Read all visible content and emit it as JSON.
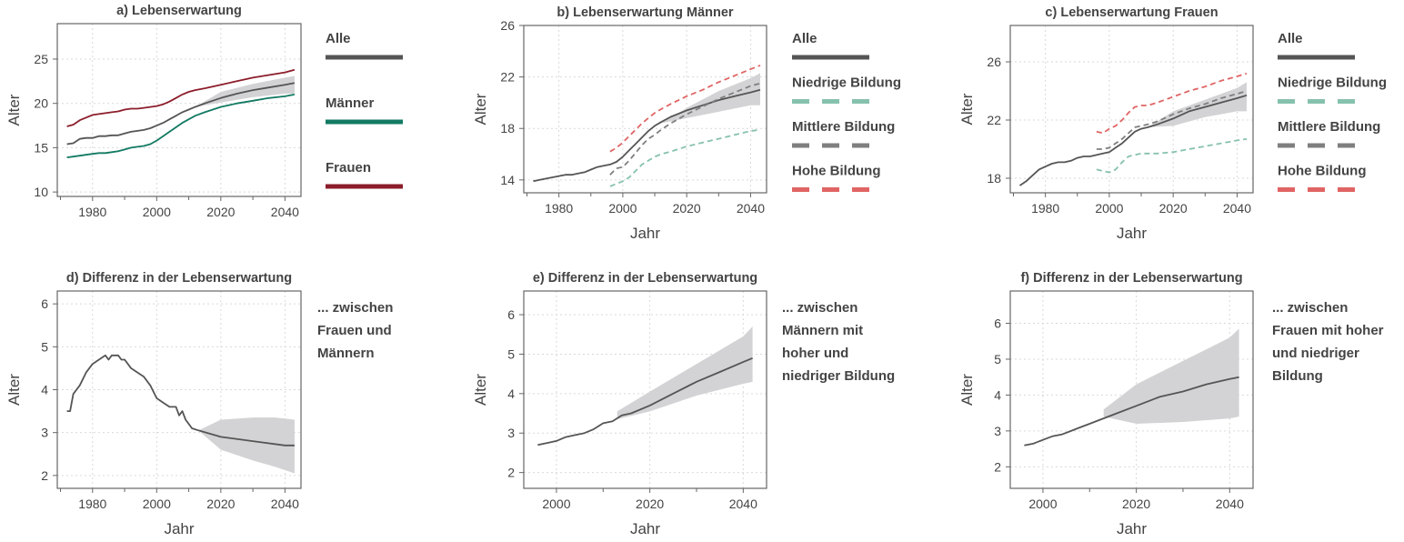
{
  "colors": {
    "alle": "#555555",
    "maenner": "#127a63",
    "frauen": "#8c1d2a",
    "niedrig": "#86c1ad",
    "mittel": "#7f7f7f",
    "hoch": "#e06464",
    "band": "#d3d3d5",
    "grid": "#d9d9d9",
    "frame": "#666666"
  },
  "legends": [
    {
      "items": [
        {
          "label": "Alle",
          "color_key": "alle",
          "dash": false
        },
        {
          "label": "Männer",
          "color_key": "maenner",
          "dash": false
        },
        {
          "label": "Frauen",
          "color_key": "frauen",
          "dash": false
        }
      ]
    },
    {
      "items": [
        {
          "label": "Alle",
          "color_key": "alle",
          "dash": false
        },
        {
          "label": "Niedrige Bildung",
          "color_key": "niedrig",
          "dash": true
        },
        {
          "label": "Mittlere Bildung",
          "color_key": "mittel",
          "dash": true
        },
        {
          "label": "Hohe Bildung",
          "color_key": "hoch",
          "dash": true
        }
      ]
    },
    {
      "items": [
        {
          "label": "Alle",
          "color_key": "alle",
          "dash": false
        },
        {
          "label": "Niedrige Bildung",
          "color_key": "niedrig",
          "dash": true
        },
        {
          "label": "Mittlere Bildung",
          "color_key": "mittel",
          "dash": true
        },
        {
          "label": "Hohe Bildung",
          "color_key": "hoch",
          "dash": true
        }
      ]
    }
  ],
  "notes": [
    {
      "lines": [
        "... zwischen",
        "Frauen und",
        "Männern"
      ]
    },
    {
      "lines": [
        "... zwischen",
        "Männern mit",
        "hoher und",
        "niedriger Bildung"
      ]
    },
    {
      "lines": [
        "... zwischen",
        "Frauen mit hoher",
        "und niedriger",
        "Bildung"
      ]
    }
  ],
  "chart_data": [
    {
      "type": "line",
      "title": "a) Lebenserwartung",
      "xlabel": "",
      "ylabel": "Alter",
      "xlim": [
        1969,
        2045
      ],
      "ylim": [
        9.5,
        29
      ],
      "xticks": [
        1980,
        2000,
        2020,
        2040
      ],
      "yticks": [
        10,
        15,
        20,
        25
      ],
      "grid": true,
      "series": [
        {
          "name": "Alle",
          "color_key": "alle",
          "dash": false,
          "x": [
            1972,
            1974,
            1976,
            1978,
            1980,
            1982,
            1984,
            1986,
            1988,
            1990,
            1992,
            1994,
            1996,
            1998,
            2000,
            2002,
            2004,
            2006,
            2008,
            2010,
            2012,
            2015,
            2020,
            2025,
            2030,
            2035,
            2040,
            2043
          ],
          "y": [
            15.4,
            15.5,
            16.0,
            16.1,
            16.1,
            16.3,
            16.3,
            16.4,
            16.4,
            16.6,
            16.8,
            16.9,
            17.0,
            17.2,
            17.5,
            17.8,
            18.2,
            18.6,
            19.0,
            19.3,
            19.6,
            20.0,
            20.6,
            21.1,
            21.5,
            21.8,
            22.1,
            22.3
          ]
        },
        {
          "name": "Männer",
          "color_key": "maenner",
          "dash": false,
          "x": [
            1972,
            1974,
            1976,
            1978,
            1980,
            1982,
            1984,
            1986,
            1988,
            1990,
            1992,
            1994,
            1996,
            1998,
            2000,
            2002,
            2004,
            2006,
            2008,
            2010,
            2012,
            2015,
            2020,
            2025,
            2030,
            2035,
            2040,
            2043
          ],
          "y": [
            13.9,
            14.0,
            14.1,
            14.2,
            14.3,
            14.4,
            14.4,
            14.5,
            14.6,
            14.8,
            15.0,
            15.1,
            15.2,
            15.4,
            15.8,
            16.3,
            16.8,
            17.3,
            17.8,
            18.2,
            18.6,
            19.0,
            19.6,
            20.0,
            20.3,
            20.6,
            20.8,
            21.0
          ]
        },
        {
          "name": "Frauen",
          "color_key": "frauen",
          "dash": false,
          "x": [
            1972,
            1974,
            1976,
            1978,
            1980,
            1982,
            1984,
            1986,
            1988,
            1990,
            1992,
            1994,
            1996,
            1998,
            2000,
            2002,
            2004,
            2006,
            2008,
            2010,
            2012,
            2015,
            2020,
            2025,
            2030,
            2035,
            2040,
            2043
          ],
          "y": [
            17.4,
            17.6,
            18.1,
            18.4,
            18.7,
            18.8,
            18.9,
            19.0,
            19.1,
            19.3,
            19.4,
            19.4,
            19.5,
            19.6,
            19.7,
            19.9,
            20.2,
            20.6,
            21.0,
            21.3,
            21.5,
            21.7,
            22.1,
            22.5,
            22.9,
            23.2,
            23.5,
            23.8
          ]
        }
      ],
      "band": {
        "x": [
          2012,
          2020,
          2030,
          2040,
          2043
        ],
        "lower": [
          19.6,
          20.1,
          20.7,
          21.1,
          21.1
        ],
        "upper": [
          19.6,
          21.3,
          22.2,
          22.9,
          23.1
        ]
      }
    },
    {
      "type": "line",
      "title": "b) Lebenserwartung Männer",
      "xlabel": "Jahr",
      "ylabel": "Alter",
      "xlim": [
        1969,
        2045
      ],
      "ylim": [
        13,
        26
      ],
      "xticks": [
        1980,
        2000,
        2020,
        2040
      ],
      "yticks": [
        14,
        18,
        22,
        26
      ],
      "grid": true,
      "series": [
        {
          "name": "Alle",
          "color_key": "alle",
          "dash": false,
          "x": [
            1972,
            1974,
            1976,
            1978,
            1980,
            1982,
            1984,
            1986,
            1988,
            1990,
            1992,
            1994,
            1996,
            1998,
            2000,
            2002,
            2004,
            2006,
            2008,
            2010,
            2012,
            2015,
            2020,
            2025,
            2030,
            2035,
            2040,
            2043
          ],
          "y": [
            13.9,
            14.0,
            14.1,
            14.2,
            14.3,
            14.4,
            14.4,
            14.5,
            14.6,
            14.8,
            15.0,
            15.1,
            15.2,
            15.4,
            15.8,
            16.3,
            16.8,
            17.3,
            17.8,
            18.2,
            18.5,
            18.9,
            19.4,
            19.8,
            20.2,
            20.5,
            20.8,
            21.0
          ]
        },
        {
          "name": "Niedrige Bildung",
          "color_key": "niedrig",
          "dash": true,
          "x": [
            1996,
            1998,
            2000,
            2002,
            2004,
            2006,
            2008,
            2010,
            2012,
            2015,
            2020,
            2025,
            2030,
            2035,
            2040,
            2043
          ],
          "y": [
            13.5,
            13.7,
            13.9,
            14.2,
            14.7,
            15.2,
            15.5,
            15.8,
            16.0,
            16.2,
            16.6,
            16.9,
            17.2,
            17.5,
            17.8,
            17.9
          ]
        },
        {
          "name": "Mittlere Bildung",
          "color_key": "mittel",
          "dash": true,
          "x": [
            1996,
            1998,
            2000,
            2002,
            2004,
            2006,
            2008,
            2010,
            2012,
            2015,
            2020,
            2025,
            2030,
            2035,
            2040,
            2043
          ],
          "y": [
            14.4,
            14.9,
            15.0,
            15.5,
            16.1,
            16.7,
            17.2,
            17.5,
            17.9,
            18.4,
            19.1,
            19.7,
            20.3,
            20.8,
            21.3,
            21.5
          ]
        },
        {
          "name": "Hohe Bildung",
          "color_key": "hoch",
          "dash": true,
          "x": [
            1996,
            1998,
            2000,
            2002,
            2004,
            2006,
            2008,
            2010,
            2012,
            2015,
            2020,
            2025,
            2030,
            2035,
            2040,
            2043
          ],
          "y": [
            16.2,
            16.5,
            16.9,
            17.4,
            17.9,
            18.4,
            18.8,
            19.2,
            19.5,
            19.9,
            20.5,
            21.0,
            21.6,
            22.1,
            22.6,
            22.9
          ]
        }
      ],
      "band": {
        "x": [
          2012,
          2020,
          2030,
          2040,
          2043
        ],
        "lower": [
          18.4,
          18.8,
          19.3,
          19.8,
          19.8
        ],
        "upper": [
          18.4,
          19.6,
          20.9,
          21.9,
          22.3
        ]
      }
    },
    {
      "type": "line",
      "title": "c) Lebenserwartung Frauen",
      "xlabel": "Jahr",
      "ylabel": "Alter",
      "xlim": [
        1969,
        2045
      ],
      "ylim": [
        17,
        28.5
      ],
      "xticks": [
        1980,
        2000,
        2020,
        2040
      ],
      "yticks": [
        18,
        22,
        26
      ],
      "grid": true,
      "series": [
        {
          "name": "Alle",
          "color_key": "alle",
          "dash": false,
          "x": [
            1972,
            1974,
            1976,
            1978,
            1980,
            1982,
            1984,
            1986,
            1988,
            1990,
            1992,
            1994,
            1996,
            1998,
            2000,
            2002,
            2004,
            2006,
            2008,
            2010,
            2012,
            2015,
            2020,
            2025,
            2030,
            2035,
            2040,
            2043
          ],
          "y": [
            17.5,
            17.8,
            18.2,
            18.6,
            18.8,
            19.0,
            19.1,
            19.1,
            19.2,
            19.4,
            19.5,
            19.5,
            19.6,
            19.7,
            19.8,
            20.1,
            20.4,
            20.8,
            21.2,
            21.4,
            21.5,
            21.7,
            22.1,
            22.6,
            22.9,
            23.2,
            23.5,
            23.7
          ]
        },
        {
          "name": "Niedrige Bildung",
          "color_key": "niedrig",
          "dash": true,
          "x": [
            1996,
            1998,
            2000,
            2002,
            2004,
            2006,
            2008,
            2010,
            2012,
            2015,
            2020,
            2025,
            2030,
            2035,
            2040,
            2043
          ],
          "y": [
            18.6,
            18.5,
            18.4,
            18.6,
            19.1,
            19.5,
            19.6,
            19.7,
            19.7,
            19.7,
            19.8,
            20.0,
            20.2,
            20.4,
            20.6,
            20.7
          ]
        },
        {
          "name": "Mittlere Bildung",
          "color_key": "mittel",
          "dash": true,
          "x": [
            1996,
            1998,
            2000,
            2002,
            2004,
            2006,
            2008,
            2010,
            2012,
            2015,
            2020,
            2025,
            2030,
            2035,
            2040,
            2043
          ],
          "y": [
            20.0,
            20.0,
            20.1,
            20.4,
            20.7,
            21.1,
            21.5,
            21.6,
            21.7,
            21.9,
            22.4,
            22.8,
            23.1,
            23.5,
            23.8,
            24.0
          ]
        },
        {
          "name": "Hohe Bildung",
          "color_key": "hoch",
          "dash": true,
          "x": [
            1996,
            1998,
            2000,
            2002,
            2004,
            2006,
            2008,
            2010,
            2012,
            2015,
            2020,
            2025,
            2030,
            2035,
            2040,
            2043
          ],
          "y": [
            21.2,
            21.1,
            21.4,
            21.6,
            22.0,
            22.5,
            22.9,
            23.0,
            23.0,
            23.2,
            23.6,
            24.0,
            24.3,
            24.7,
            25.0,
            25.2
          ]
        }
      ],
      "band": {
        "x": [
          2012,
          2020,
          2030,
          2040,
          2043
        ],
        "lower": [
          21.5,
          21.6,
          22.2,
          22.6,
          22.6
        ],
        "upper": [
          21.5,
          22.6,
          23.4,
          24.2,
          24.6
        ]
      }
    },
    {
      "type": "line",
      "title": "d) Differenz in der Lebenserwartung",
      "xlabel": "Jahr",
      "ylabel": "Alter",
      "xlim": [
        1969,
        2045
      ],
      "ylim": [
        1.7,
        6.3
      ],
      "xticks": [
        1980,
        2000,
        2020,
        2040
      ],
      "yticks": [
        2,
        3,
        4,
        5,
        6
      ],
      "grid": true,
      "series": [
        {
          "name": "",
          "color_key": "alle",
          "dash": false,
          "x": [
            1972,
            1973,
            1974,
            1976,
            1978,
            1980,
            1982,
            1984,
            1985,
            1986,
            1987,
            1988,
            1989,
            1990,
            1991,
            1992,
            1994,
            1996,
            1998,
            2000,
            2002,
            2004,
            2006,
            2007,
            2008,
            2009,
            2010,
            2011,
            2013,
            2020,
            2030,
            2040,
            2043
          ],
          "y": [
            3.5,
            3.5,
            3.9,
            4.1,
            4.4,
            4.6,
            4.7,
            4.8,
            4.7,
            4.8,
            4.8,
            4.8,
            4.7,
            4.7,
            4.6,
            4.5,
            4.4,
            4.3,
            4.1,
            3.8,
            3.7,
            3.6,
            3.6,
            3.4,
            3.5,
            3.3,
            3.2,
            3.1,
            3.05,
            2.9,
            2.8,
            2.7,
            2.7
          ]
        }
      ],
      "band": {
        "x": [
          2013,
          2020,
          2030,
          2037,
          2043
        ],
        "lower": [
          3.05,
          2.6,
          2.35,
          2.2,
          2.05
        ],
        "upper": [
          3.05,
          3.3,
          3.35,
          3.35,
          3.3
        ]
      }
    },
    {
      "type": "line",
      "title": "e) Differenz in der Lebenserwartung",
      "xlabel": "Jahr",
      "ylabel": "Alter",
      "xlim": [
        1993,
        2045
      ],
      "ylim": [
        1.6,
        6.6
      ],
      "xticks": [
        2000,
        2020,
        2040
      ],
      "yticks": [
        2,
        3,
        4,
        5,
        6
      ],
      "grid": true,
      "series": [
        {
          "name": "",
          "color_key": "alle",
          "dash": false,
          "x": [
            1996,
            1998,
            2000,
            2002,
            2004,
            2006,
            2008,
            2010,
            2012,
            2014,
            2016,
            2020,
            2025,
            2030,
            2035,
            2040,
            2042
          ],
          "y": [
            2.7,
            2.75,
            2.8,
            2.9,
            2.95,
            3.0,
            3.1,
            3.25,
            3.3,
            3.45,
            3.5,
            3.7,
            4.0,
            4.3,
            4.55,
            4.8,
            4.9
          ]
        }
      ],
      "band": {
        "x": [
          2013,
          2020,
          2030,
          2040,
          2042
        ],
        "lower": [
          3.35,
          3.55,
          3.95,
          4.25,
          4.3
        ],
        "upper": [
          3.55,
          4.05,
          4.75,
          5.45,
          5.7
        ]
      }
    },
    {
      "type": "line",
      "title": "f) Differenz in der Lebenserwartung",
      "xlabel": "Jahr",
      "ylabel": "Alter",
      "xlim": [
        1993,
        2045
      ],
      "ylim": [
        1.4,
        6.9
      ],
      "xticks": [
        2000,
        2020,
        2040
      ],
      "yticks": [
        2,
        3,
        4,
        5,
        6
      ],
      "grid": true,
      "series": [
        {
          "name": "",
          "color_key": "alle",
          "dash": false,
          "x": [
            1996,
            1998,
            2000,
            2002,
            2004,
            2006,
            2008,
            2010,
            2012,
            2014,
            2016,
            2020,
            2025,
            2030,
            2035,
            2040,
            2042
          ],
          "y": [
            2.6,
            2.65,
            2.75,
            2.85,
            2.9,
            3.0,
            3.1,
            3.2,
            3.3,
            3.4,
            3.5,
            3.7,
            3.95,
            4.1,
            4.3,
            4.45,
            4.5
          ]
        }
      ],
      "band": {
        "x": [
          2013,
          2020,
          2030,
          2040,
          2042
        ],
        "lower": [
          3.4,
          3.2,
          3.25,
          3.35,
          3.4
        ],
        "upper": [
          3.6,
          4.3,
          4.95,
          5.6,
          5.85
        ]
      }
    }
  ]
}
